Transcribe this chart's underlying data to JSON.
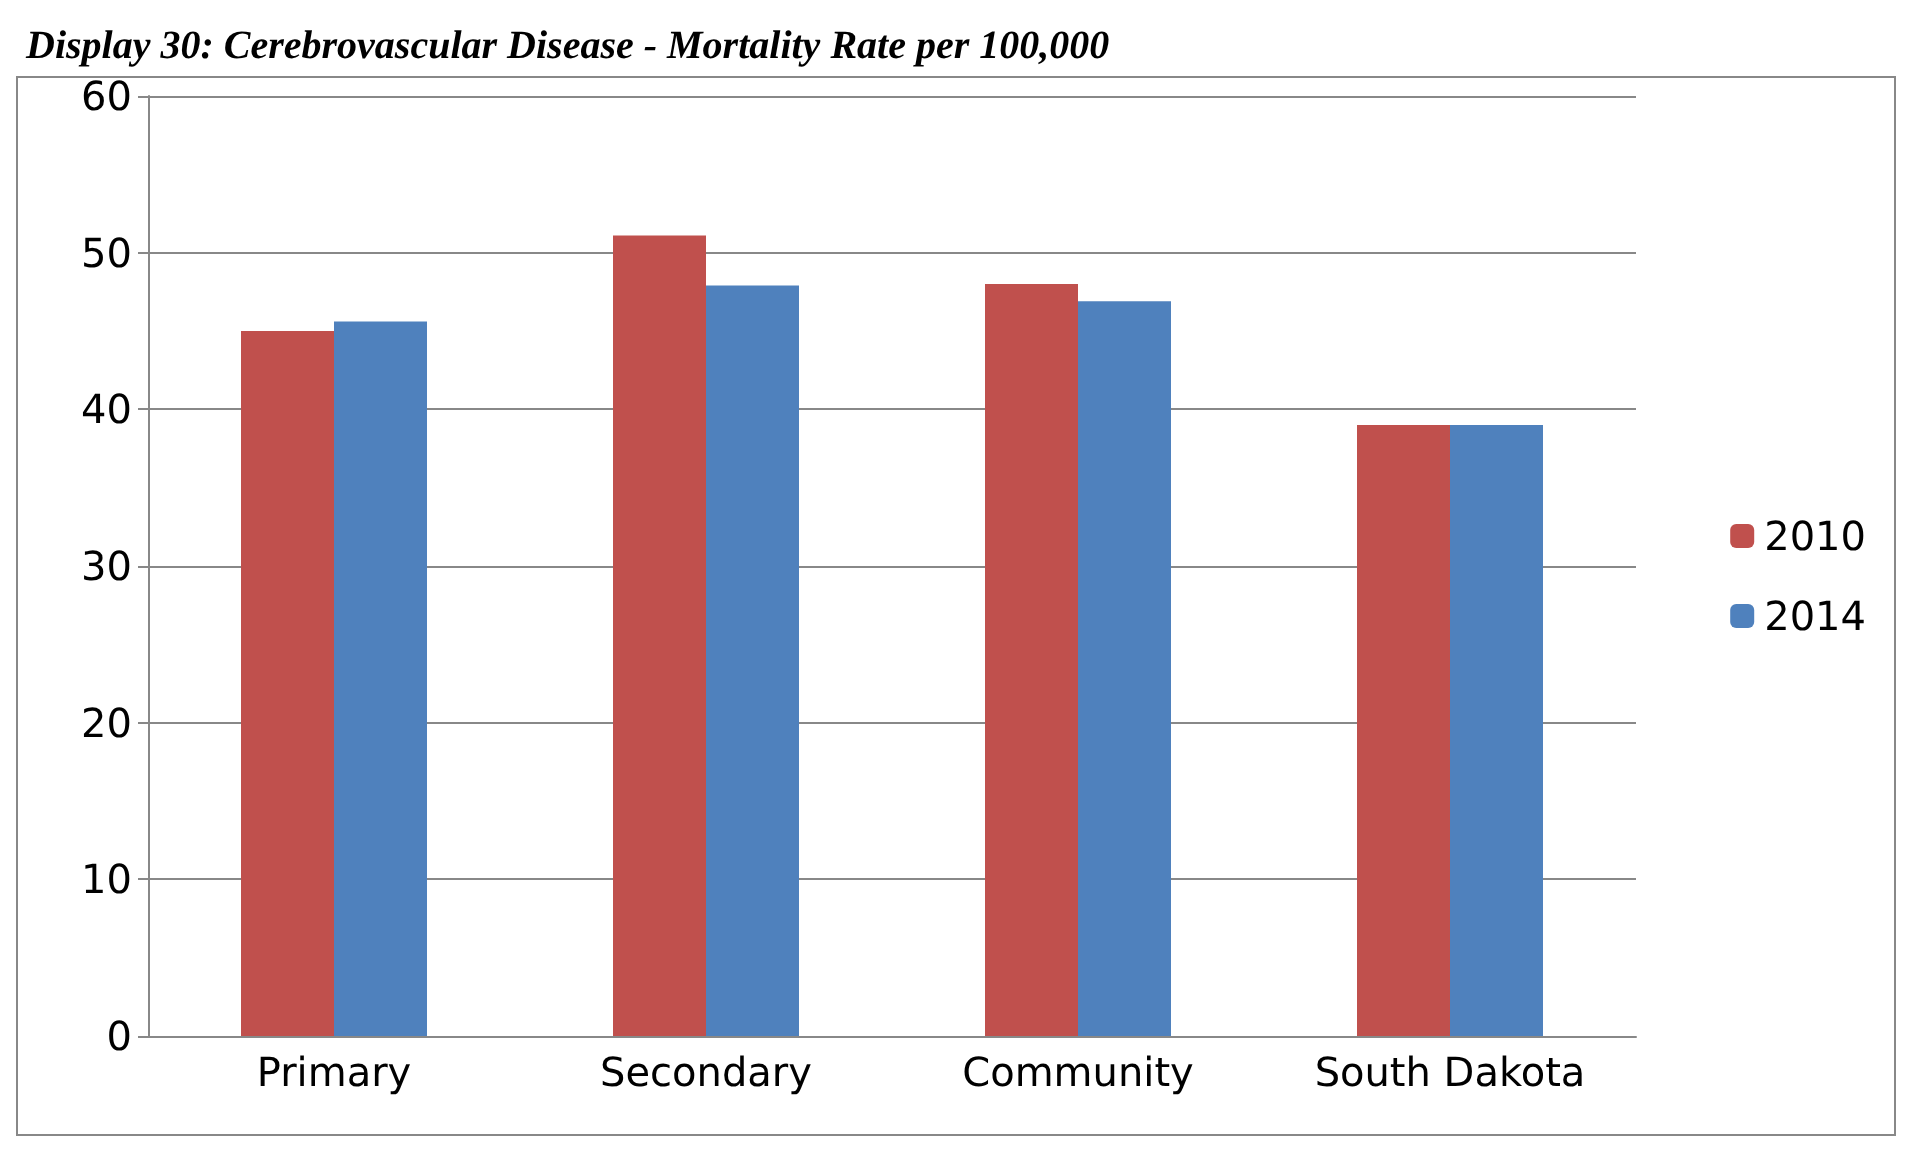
{
  "chart_data": {
    "type": "bar",
    "title": "Display 30: Cerebrovascular Disease - Mortality Rate per 100,000",
    "categories": [
      "Primary",
      "Secondary",
      "Community",
      "South Dakota"
    ],
    "series": [
      {
        "name": "2010",
        "color": "#c0504d",
        "values": [
          45,
          51.1,
          48,
          39
        ]
      },
      {
        "name": "2014",
        "color": "#4f81bd",
        "values": [
          45.6,
          47.9,
          46.9,
          39
        ]
      }
    ],
    "ylim": [
      0,
      60
    ],
    "yticks": [
      0,
      10,
      20,
      30,
      40,
      50,
      60
    ],
    "grid": "y",
    "legend": "right"
  }
}
